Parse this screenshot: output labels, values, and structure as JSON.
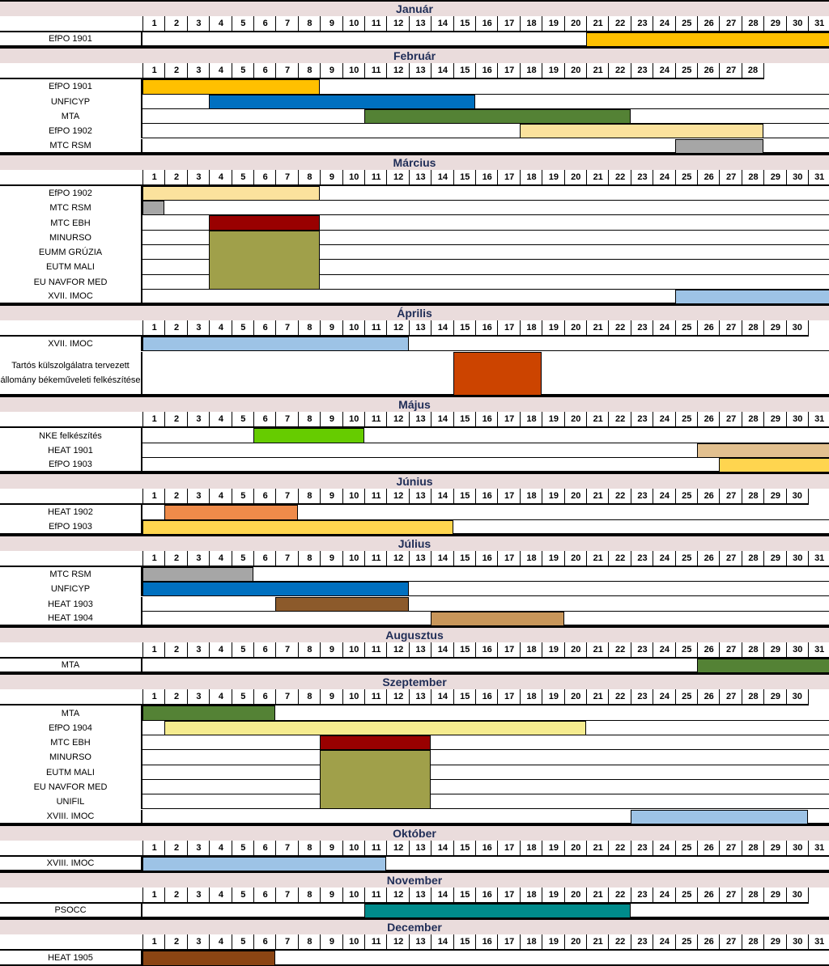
{
  "colors": {
    "efpo_orange": "#ffc000",
    "efpo_light": "#fbe29d",
    "efpo_yellow": "#ffd54f",
    "efpo_pale": "#f6ec8f",
    "unficyp": "#0070c0",
    "mta": "#548235",
    "mtc_rsm": "#a6a6a6",
    "mtc_ebh": "#990000",
    "olive": "#a0a04a",
    "imoc": "#9dc3e6",
    "rust": "#cc4400",
    "nke": "#66cc00",
    "heat1901": "#e2c08f",
    "heat1902": "#ef8b4a",
    "heat1903": "#8c5a2b",
    "heat1904": "#c8965a",
    "psocc": "#008b8b",
    "heat1905": "#8b4513",
    "header_bg": "#eadcdc"
  },
  "months": [
    {
      "name": "Január",
      "days": 31,
      "rows": [
        {
          "label": "EfPO 1901",
          "lines": 1
        }
      ],
      "bars": [
        {
          "start": 21,
          "end": 31,
          "row": 0,
          "rows": 1,
          "color": "efpo_orange"
        }
      ]
    },
    {
      "name": "Február",
      "days": 28,
      "rows": [
        {
          "label": "EfPO 1901",
          "lines": 1
        },
        {
          "label": "UNFICYP",
          "lines": 1
        },
        {
          "label": "MTA",
          "lines": 1
        },
        {
          "label": "EfPO 1902",
          "lines": 1
        },
        {
          "label": "MTC RSM",
          "lines": 1
        }
      ],
      "bars": [
        {
          "start": 1,
          "end": 8,
          "row": 0,
          "rows": 1,
          "color": "efpo_orange"
        },
        {
          "start": 4,
          "end": 15,
          "row": 1,
          "rows": 1,
          "color": "unficyp"
        },
        {
          "start": 11,
          "end": 22,
          "row": 2,
          "rows": 1,
          "color": "mta"
        },
        {
          "start": 18,
          "end": 28,
          "row": 3,
          "rows": 1,
          "color": "efpo_light"
        },
        {
          "start": 25,
          "end": 28,
          "row": 4,
          "rows": 1,
          "color": "mtc_rsm"
        }
      ]
    },
    {
      "name": "Március",
      "days": 31,
      "rows": [
        {
          "label": "EfPO 1902",
          "lines": 1
        },
        {
          "label": "MTC RSM",
          "lines": 1
        },
        {
          "label": "MTC EBH",
          "lines": 1
        },
        {
          "label": "MINURSO",
          "lines": 1
        },
        {
          "label": "EUMM GRÚZIA",
          "lines": 1
        },
        {
          "label": "EUTM MALI",
          "lines": 1
        },
        {
          "label": "EU NAVFOR MED",
          "lines": 1
        },
        {
          "label": "XVII. IMOC",
          "lines": 1
        }
      ],
      "bars": [
        {
          "start": 1,
          "end": 8,
          "row": 0,
          "rows": 1,
          "color": "efpo_light"
        },
        {
          "start": 1,
          "end": 1,
          "row": 1,
          "rows": 1,
          "color": "mtc_rsm"
        },
        {
          "start": 4,
          "end": 8,
          "row": 2,
          "rows": 1,
          "color": "mtc_ebh"
        },
        {
          "start": 4,
          "end": 8,
          "row": 3,
          "rows": 4,
          "color": "olive"
        },
        {
          "start": 25,
          "end": 31,
          "row": 7,
          "rows": 1,
          "color": "imoc"
        }
      ]
    },
    {
      "name": "Április",
      "days": 30,
      "rows": [
        {
          "label": "XVII. IMOC",
          "lines": 1
        },
        {
          "label": "Tartós külszolgálatra tervezett állomány békeműveleti felkészítése",
          "lines": 3
        }
      ],
      "bars": [
        {
          "start": 1,
          "end": 12,
          "row": 0,
          "rows": 1,
          "color": "imoc"
        },
        {
          "start": 15,
          "end": 18,
          "row": 1,
          "rows": 1,
          "color": "rust"
        }
      ]
    },
    {
      "name": "Május",
      "days": 31,
      "rows": [
        {
          "label": "NKE felkészítés",
          "lines": 1
        },
        {
          "label": "HEAT 1901",
          "lines": 1
        },
        {
          "label": "EfPO 1903",
          "lines": 1
        }
      ],
      "bars": [
        {
          "start": 6,
          "end": 10,
          "row": 0,
          "rows": 1,
          "color": "nke"
        },
        {
          "start": 26,
          "end": 31,
          "row": 1,
          "rows": 1,
          "color": "heat1901"
        },
        {
          "start": 27,
          "end": 31,
          "row": 2,
          "rows": 1,
          "color": "efpo_yellow"
        }
      ]
    },
    {
      "name": "Június",
      "days": 30,
      "rows": [
        {
          "label": "HEAT 1902",
          "lines": 1
        },
        {
          "label": "EfPO 1903",
          "lines": 1
        }
      ],
      "bars": [
        {
          "start": 2,
          "end": 7,
          "row": 0,
          "rows": 1,
          "color": "heat1902"
        },
        {
          "start": 1,
          "end": 14,
          "row": 1,
          "rows": 1,
          "color": "efpo_yellow"
        }
      ]
    },
    {
      "name": "Július",
      "days": 31,
      "rows": [
        {
          "label": "MTC RSM",
          "lines": 1
        },
        {
          "label": "UNFICYP",
          "lines": 1
        },
        {
          "label": "HEAT 1903",
          "lines": 1
        },
        {
          "label": "HEAT 1904",
          "lines": 1
        }
      ],
      "bars": [
        {
          "start": 1,
          "end": 5,
          "row": 0,
          "rows": 1,
          "color": "mtc_rsm"
        },
        {
          "start": 1,
          "end": 12,
          "row": 1,
          "rows": 1,
          "color": "unficyp"
        },
        {
          "start": 7,
          "end": 12,
          "row": 2,
          "rows": 1,
          "color": "heat1903"
        },
        {
          "start": 14,
          "end": 19,
          "row": 3,
          "rows": 1,
          "color": "heat1904"
        }
      ]
    },
    {
      "name": "Augusztus",
      "days": 31,
      "rows": [
        {
          "label": "MTA",
          "lines": 1
        }
      ],
      "bars": [
        {
          "start": 26,
          "end": 31,
          "row": 0,
          "rows": 1,
          "color": "mta"
        }
      ]
    },
    {
      "name": "Szeptember",
      "days": 30,
      "rows": [
        {
          "label": "MTA",
          "lines": 1
        },
        {
          "label": "EfPO 1904",
          "lines": 1
        },
        {
          "label": "MTC EBH",
          "lines": 1
        },
        {
          "label": "MINURSO",
          "lines": 1
        },
        {
          "label": "EUTM MALI",
          "lines": 1
        },
        {
          "label": "EU NAVFOR MED",
          "lines": 1
        },
        {
          "label": "UNIFIL",
          "lines": 1
        },
        {
          "label": "XVIII. IMOC",
          "lines": 1
        }
      ],
      "bars": [
        {
          "start": 1,
          "end": 6,
          "row": 0,
          "rows": 1,
          "color": "mta"
        },
        {
          "start": 2,
          "end": 20,
          "row": 1,
          "rows": 1,
          "color": "efpo_pale"
        },
        {
          "start": 9,
          "end": 13,
          "row": 2,
          "rows": 1,
          "color": "mtc_ebh"
        },
        {
          "start": 9,
          "end": 13,
          "row": 3,
          "rows": 4,
          "color": "olive"
        },
        {
          "start": 23,
          "end": 30,
          "row": 7,
          "rows": 1,
          "color": "imoc"
        }
      ]
    },
    {
      "name": "Október",
      "days": 31,
      "rows": [
        {
          "label": "XVIII. IMOC",
          "lines": 1
        }
      ],
      "bars": [
        {
          "start": 1,
          "end": 11,
          "row": 0,
          "rows": 1,
          "color": "imoc"
        }
      ]
    },
    {
      "name": "November",
      "days": 30,
      "rows": [
        {
          "label": "PSOCC",
          "lines": 1
        }
      ],
      "bars": [
        {
          "start": 11,
          "end": 22,
          "row": 0,
          "rows": 1,
          "color": "psocc"
        }
      ]
    },
    {
      "name": "December",
      "days": 31,
      "rows": [
        {
          "label": "HEAT 1905",
          "lines": 1
        }
      ],
      "bars": [
        {
          "start": 1,
          "end": 6,
          "row": 0,
          "rows": 1,
          "color": "heat1905"
        }
      ]
    }
  ]
}
